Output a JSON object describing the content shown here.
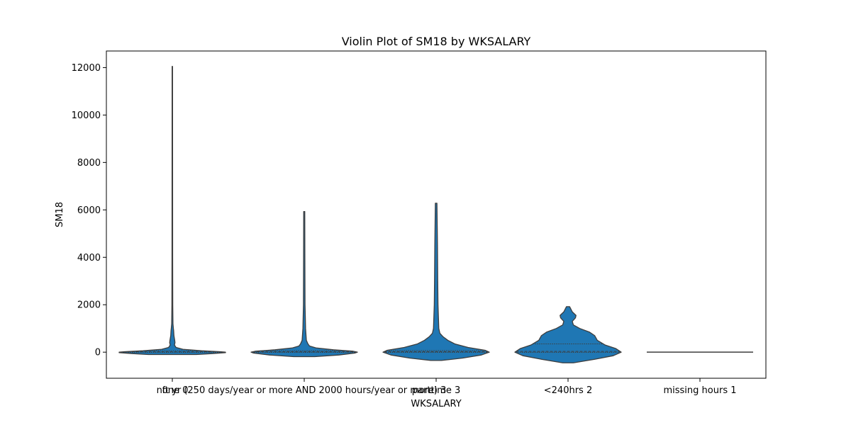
{
  "chart_data": {
    "type": "violin",
    "title": "Violin Plot of SM18 by WKSALARY",
    "xlabel": "WKSALARY",
    "ylabel": "SM18",
    "ylim": [
      -1100,
      12700
    ],
    "yticks": [
      0,
      2000,
      4000,
      6000,
      8000,
      10000,
      12000
    ],
    "grid": false,
    "legend": "none",
    "violin_color": "#1f77b4",
    "edge_color": "#3d3d3d",
    "categories": [
      "ft yr (250 days/year or more AND 2000 hours/year or more) 3",
      "none 0",
      "parttime 3",
      "<240hrs 2",
      "missing hours 1"
    ],
    "tick_labels_shown": [
      "none 0",
      "ft yr (250 days/year or more AND 2000 hours/year or more) 3",
      "parttime 3",
      "<240hrs 2",
      "missing hours 1"
    ],
    "violins": [
      {
        "label": "none 0",
        "min": -100,
        "max": 12050,
        "quartiles": [
          -10,
          15,
          60
        ],
        "profile": [
          [
            -100,
            0.45
          ],
          [
            -60,
            0.75
          ],
          [
            -20,
            1.0
          ],
          [
            0,
            1.0
          ],
          [
            20,
            0.9
          ],
          [
            60,
            0.55
          ],
          [
            120,
            0.2
          ],
          [
            200,
            0.07
          ],
          [
            300,
            0.04
          ],
          [
            400,
            0.05
          ],
          [
            500,
            0.045
          ],
          [
            700,
            0.03
          ],
          [
            900,
            0.025
          ],
          [
            1000,
            0.02
          ],
          [
            1200,
            0.012
          ],
          [
            2000,
            0.008
          ],
          [
            4000,
            0.006
          ],
          [
            8000,
            0.005
          ],
          [
            12050,
            0.004
          ]
        ]
      },
      {
        "label": "ft yr",
        "min": -190,
        "max": 5930,
        "quartiles": [
          -10,
          15,
          60
        ],
        "profile": [
          [
            -190,
            0.2
          ],
          [
            -120,
            0.65
          ],
          [
            -40,
            0.95
          ],
          [
            0,
            1.0
          ],
          [
            40,
            0.92
          ],
          [
            100,
            0.55
          ],
          [
            180,
            0.22
          ],
          [
            260,
            0.1
          ],
          [
            350,
            0.07
          ],
          [
            500,
            0.04
          ],
          [
            1000,
            0.025
          ],
          [
            2000,
            0.015
          ],
          [
            4000,
            0.012
          ],
          [
            5930,
            0.01
          ]
        ]
      },
      {
        "label": "parttime 3",
        "min": -350,
        "max": 6280,
        "quartiles": [
          -10,
          20,
          70
        ],
        "profile": [
          [
            -350,
            0.1
          ],
          [
            -250,
            0.5
          ],
          [
            -120,
            0.85
          ],
          [
            0,
            1.0
          ],
          [
            80,
            0.92
          ],
          [
            200,
            0.6
          ],
          [
            350,
            0.35
          ],
          [
            500,
            0.22
          ],
          [
            650,
            0.13
          ],
          [
            800,
            0.07
          ],
          [
            1000,
            0.05
          ],
          [
            2000,
            0.035
          ],
          [
            3000,
            0.03
          ],
          [
            4500,
            0.025
          ],
          [
            6280,
            0.015
          ]
        ]
      },
      {
        "label": "<240hrs 2",
        "min": -450,
        "max": 1920,
        "quartiles": [
          -10,
          30,
          350
        ],
        "profile": [
          [
            -450,
            0.1
          ],
          [
            -300,
            0.5
          ],
          [
            -150,
            0.85
          ],
          [
            0,
            1.0
          ],
          [
            150,
            0.9
          ],
          [
            300,
            0.7
          ],
          [
            500,
            0.55
          ],
          [
            700,
            0.5
          ],
          [
            850,
            0.4
          ],
          [
            1000,
            0.22
          ],
          [
            1150,
            0.1
          ],
          [
            1300,
            0.08
          ],
          [
            1450,
            0.14
          ],
          [
            1550,
            0.15
          ],
          [
            1700,
            0.08
          ],
          [
            1920,
            0.03
          ]
        ]
      },
      {
        "label": "missing hours 1",
        "min": 0,
        "max": 0,
        "flat": true
      }
    ]
  }
}
